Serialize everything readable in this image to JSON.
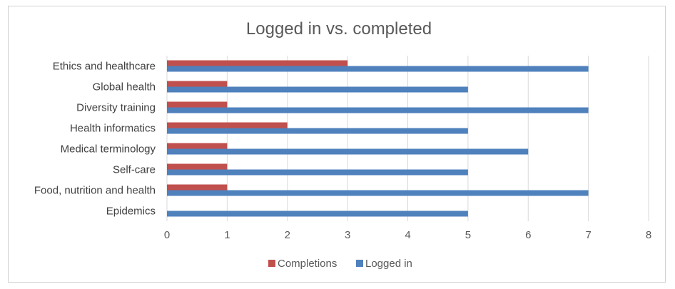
{
  "chart_data": {
    "type": "bar",
    "orientation": "horizontal",
    "title": "Logged in vs. completed",
    "categories": [
      "Ethics and healthcare",
      "Global health",
      "Diversity training",
      "Health informatics",
      "Medical terminology",
      "Self-care",
      "Food, nutrition and health",
      "Epidemics"
    ],
    "series": [
      {
        "name": "Completions",
        "color": "#c0504d",
        "values": [
          3,
          1,
          1,
          2,
          1,
          1,
          1,
          0
        ]
      },
      {
        "name": "Logged in",
        "color": "#4f81bd",
        "values": [
          7,
          5,
          7,
          5,
          6,
          5,
          7,
          5
        ]
      }
    ],
    "xlim": [
      0,
      8
    ],
    "xticks": [
      "0",
      "1",
      "2",
      "3",
      "4",
      "5",
      "6",
      "7",
      "8"
    ],
    "grid": true,
    "legend": "bottom"
  }
}
